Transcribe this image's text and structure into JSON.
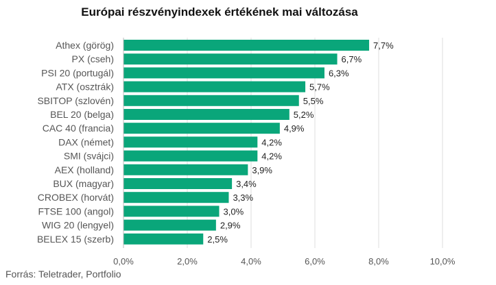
{
  "chart_data": {
    "type": "bar",
    "orientation": "horizontal",
    "title": "Európai részvényindexek értékének mai változása",
    "source": "Forrás: Teletrader, Portfolio",
    "categories": [
      "Athex (görög)",
      "PX (cseh)",
      "PSI 20 (portugál)",
      "ATX (osztrák)",
      "SBITOP (szlovén)",
      "BEL 20 (belga)",
      "CAC 40 (francia)",
      "DAX (német)",
      "SMI (svájci)",
      "AEX (holland)",
      "BUX (magyar)",
      "CROBEX (horvát)",
      "FTSE 100 (angol)",
      "WIG 20 (lengyel)",
      "BELEX 15 (szerb)"
    ],
    "values": [
      7.7,
      6.7,
      6.3,
      5.7,
      5.5,
      5.2,
      4.9,
      4.2,
      4.2,
      3.9,
      3.4,
      3.3,
      3.0,
      2.9,
      2.5
    ],
    "value_labels": [
      "7,7%",
      "6,7%",
      "6,3%",
      "5,7%",
      "5,5%",
      "5,2%",
      "4,9%",
      "4,2%",
      "4,2%",
      "3,9%",
      "3,4%",
      "3,3%",
      "3,0%",
      "2,9%",
      "2,5%"
    ],
    "xlim": [
      0,
      10
    ],
    "xticks": [
      0,
      2,
      4,
      6,
      8,
      10
    ],
    "xtick_labels": [
      "0,0%",
      "2,0%",
      "4,0%",
      "6,0%",
      "8,0%",
      "10,0%"
    ],
    "grid": true,
    "bar_color": "#0aa67a",
    "xlabel": "",
    "ylabel": ""
  }
}
